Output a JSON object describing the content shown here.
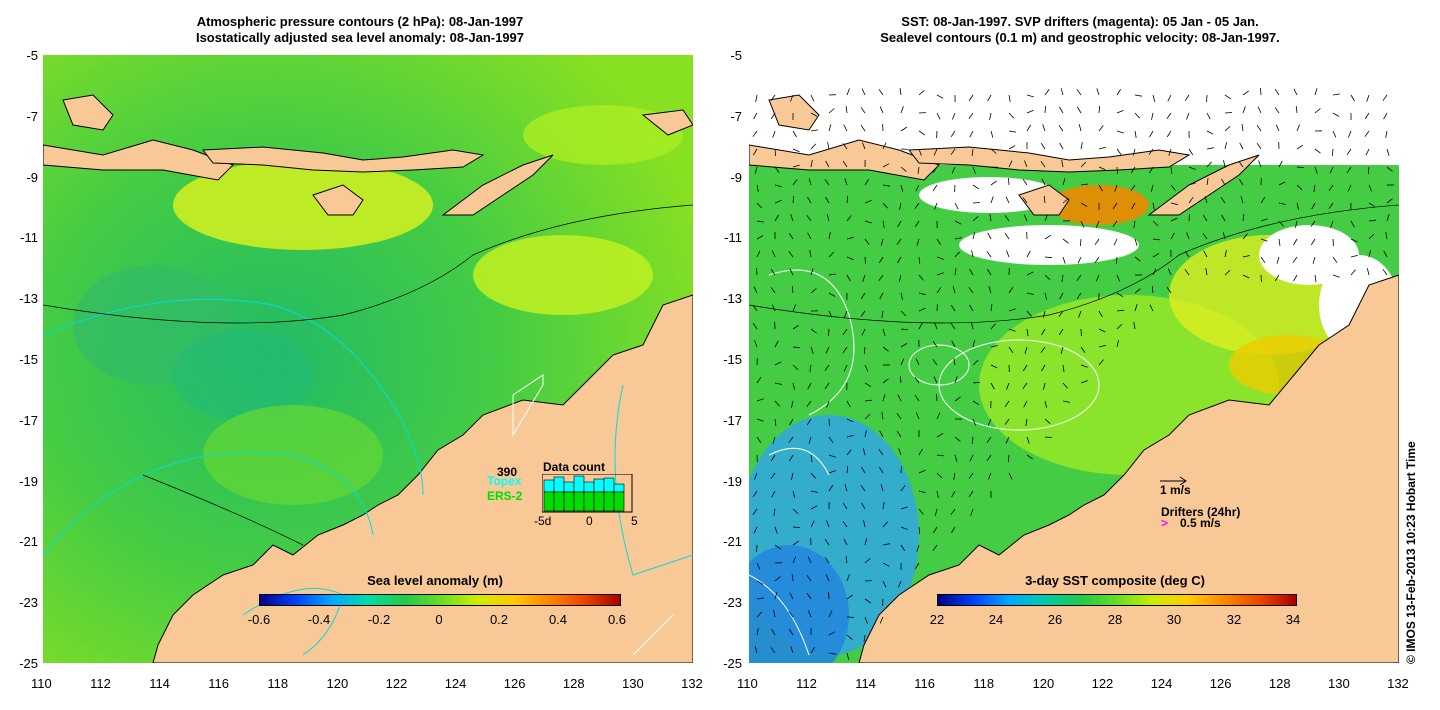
{
  "left_panel": {
    "title_line1": "Atmospheric pressure contours (2 hPa): 08-Jan-1997",
    "title_line2": "Isostatically adjusted sea level anomaly: 08-Jan-1997",
    "colorbar_title": "Sea level anomaly (m)",
    "colorbar_ticks": [
      "-0.6",
      "-0.4",
      "-0.2",
      "0",
      "0.2",
      "0.4",
      "0.6"
    ],
    "data_count": {
      "total": "390",
      "title": "Data count",
      "series1": "Topex",
      "series2": "ERS-2",
      "x_ticks": [
        "-5d",
        "0",
        "5"
      ],
      "topex_color": "#00ffff",
      "ers_color": "#00dd00"
    }
  },
  "right_panel": {
    "title_line1": "SST: 08-Jan-1997. SVP drifters (magenta): 05 Jan - 05 Jan.",
    "title_line2": "Sealevel contours (0.1 m) and geostrophic velocity: 08-Jan-1997.",
    "colorbar_title": "3-day SST composite (deg C)",
    "colorbar_ticks": [
      "22",
      "24",
      "26",
      "28",
      "30",
      "32",
      "34"
    ],
    "velocity_scale": "1 m/s",
    "drifters_label": "Drifters (24hr)",
    "drifters_scale": "0.5 m/s",
    "drifter_color": "#ff00ff"
  },
  "axes": {
    "x_ticks": [
      "110",
      "112",
      "114",
      "116",
      "118",
      "120",
      "122",
      "124",
      "126",
      "128",
      "130",
      "132"
    ],
    "y_ticks": [
      "-5",
      "-7",
      "-9",
      "-11",
      "-13",
      "-15",
      "-17",
      "-19",
      "-21",
      "-23",
      "-25"
    ]
  },
  "credit": "© IMOS 13-Feb-2013 10:23 Hobart Time",
  "colors": {
    "land": "#f9c897",
    "ocean_left": "#66dd33",
    "ocean_right": "#44cc44"
  }
}
